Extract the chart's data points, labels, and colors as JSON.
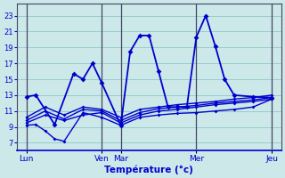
{
  "background_color": "#cce8e8",
  "grid_color": "#99cccc",
  "line_color": "#0000cc",
  "separator_color": "#444466",
  "xlabel": "Température (°c)",
  "y_ticks": [
    7,
    9,
    11,
    13,
    15,
    17,
    19,
    21,
    23
  ],
  "ylim": [
    6.0,
    24.5
  ],
  "xlim": [
    -0.5,
    13.5
  ],
  "day_labels": [
    "Lun",
    "Ven",
    "Mar",
    "Mer",
    "Jeu"
  ],
  "day_positions": [
    0.0,
    4.0,
    5.0,
    9.0,
    13.0
  ],
  "separator_positions": [
    0.0,
    4.0,
    5.0,
    9.0,
    13.0
  ],
  "series": [
    {
      "x": [
        0.0,
        0.5,
        1.5,
        2.5,
        3.0,
        3.5,
        4.0,
        5.0,
        5.5,
        6.0,
        6.5,
        7.0,
        7.5,
        8.0,
        8.5,
        9.0,
        9.5,
        10.0,
        10.5,
        11.0,
        12.0,
        13.0
      ],
      "y": [
        12.8,
        13.0,
        9.3,
        15.7,
        15.0,
        17.0,
        14.5,
        9.2,
        18.5,
        20.5,
        20.5,
        16.0,
        11.5,
        11.5,
        11.5,
        20.3,
        23.0,
        19.2,
        15.0,
        13.0,
        12.8,
        12.7
      ],
      "lw": 1.3,
      "ms": 3
    },
    {
      "x": [
        0.0,
        0.5,
        1.0,
        1.5,
        2.0,
        3.0,
        4.0,
        5.0,
        6.0,
        7.0,
        8.0,
        9.0,
        10.0,
        11.0,
        12.0,
        13.0
      ],
      "y": [
        9.2,
        9.3,
        8.5,
        7.5,
        7.2,
        10.8,
        10.2,
        9.2,
        10.2,
        10.5,
        10.7,
        10.8,
        11.0,
        11.2,
        11.5,
        12.5
      ],
      "lw": 1.0,
      "ms": 2
    },
    {
      "x": [
        0.0,
        1.0,
        2.0,
        3.0,
        4.0,
        5.0,
        6.0,
        7.0,
        8.0,
        9.0,
        10.0,
        11.0,
        12.0,
        13.0
      ],
      "y": [
        9.5,
        10.5,
        9.8,
        10.5,
        10.8,
        9.5,
        10.5,
        11.0,
        11.2,
        11.5,
        11.8,
        12.0,
        12.2,
        12.5
      ],
      "lw": 1.0,
      "ms": 2
    },
    {
      "x": [
        0.0,
        1.0,
        2.0,
        3.0,
        4.0,
        5.0,
        6.0,
        7.0,
        8.0,
        9.0,
        10.0,
        11.0,
        12.0,
        13.0
      ],
      "y": [
        9.8,
        11.0,
        10.0,
        11.2,
        11.0,
        9.8,
        10.8,
        11.3,
        11.5,
        11.7,
        12.0,
        12.2,
        12.4,
        12.7
      ],
      "lw": 1.0,
      "ms": 2
    },
    {
      "x": [
        0.0,
        1.0,
        2.0,
        3.0,
        4.0,
        5.0,
        6.0,
        7.0,
        8.0,
        9.0,
        10.0,
        11.0,
        12.0,
        13.0
      ],
      "y": [
        10.2,
        11.5,
        10.5,
        11.5,
        11.2,
        10.2,
        11.2,
        11.5,
        11.8,
        12.0,
        12.2,
        12.5,
        12.7,
        13.0
      ],
      "lw": 1.0,
      "ms": 2
    }
  ]
}
